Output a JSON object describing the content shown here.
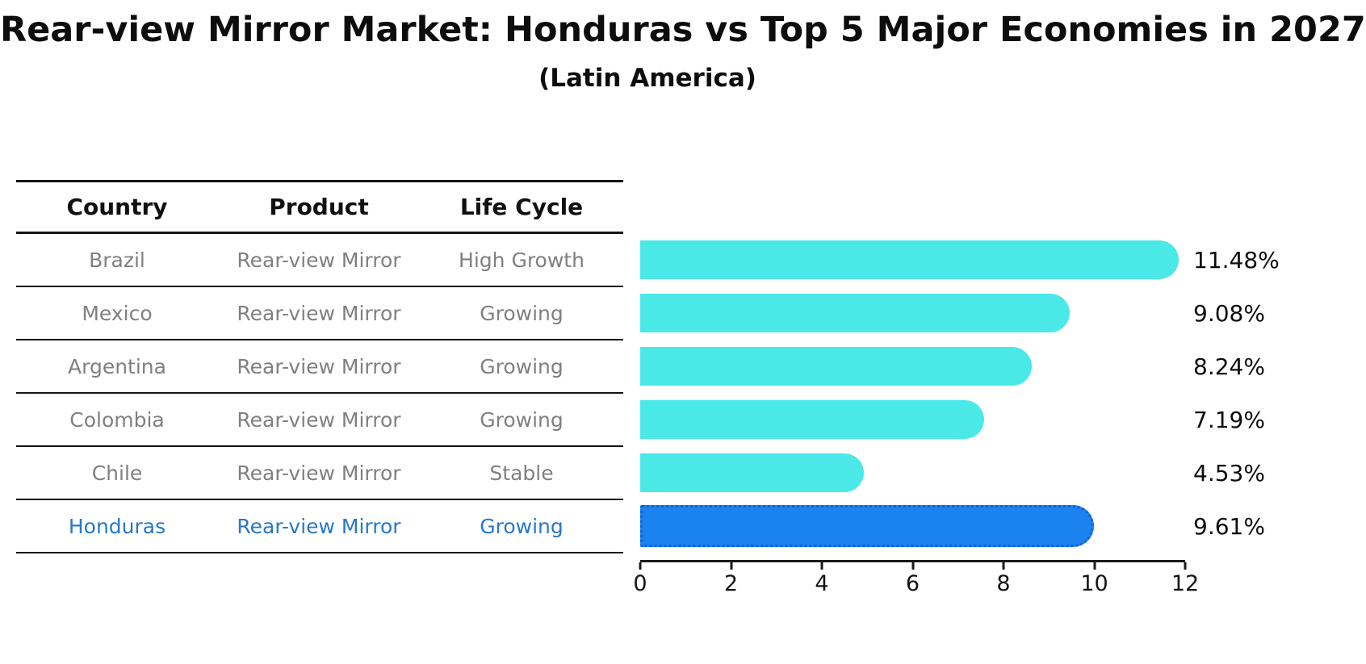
{
  "title": "Rear-view Mirror Market: Honduras vs Top 5 Major Economies in 2027",
  "subtitle": "(Latin America)",
  "table": {
    "headers": {
      "country": "Country",
      "product": "Product",
      "life_cycle": "Life Cycle"
    },
    "rows": [
      {
        "country": "Brazil",
        "product": "Rear-view Mirror",
        "life_cycle": "High Growth",
        "highlight": false
      },
      {
        "country": "Mexico",
        "product": "Rear-view Mirror",
        "life_cycle": "Growing",
        "highlight": false
      },
      {
        "country": "Argentina",
        "product": "Rear-view Mirror",
        "life_cycle": "Growing",
        "highlight": false
      },
      {
        "country": "Colombia",
        "product": "Rear-view Mirror",
        "life_cycle": "Growing",
        "highlight": false
      },
      {
        "country": "Chile",
        "product": "Rear-view Mirror",
        "life_cycle": "Stable",
        "highlight": false
      },
      {
        "country": "Honduras",
        "product": "Rear-view Mirror",
        "life_cycle": "Growing",
        "highlight": true
      }
    ]
  },
  "chart_data": {
    "type": "bar",
    "orientation": "horizontal",
    "title": "Rear-view Mirror Market: Honduras vs Top 5 Major Economies in 2027",
    "subtitle": "(Latin America)",
    "categories": [
      "Brazil",
      "Mexico",
      "Argentina",
      "Colombia",
      "Chile",
      "Honduras"
    ],
    "values": [
      11.48,
      9.08,
      8.24,
      7.19,
      4.53,
      9.61
    ],
    "value_labels": [
      "11.48%",
      "9.08%",
      "8.24%",
      "7.19%",
      "4.53%",
      "9.61%"
    ],
    "xlim": [
      0,
      12
    ],
    "xticks": [
      0,
      2,
      4,
      6,
      8,
      10,
      12
    ],
    "grid": false,
    "legend": "none",
    "highlight_category": "Honduras",
    "colors": {
      "bar": "#4be8e8",
      "highlight_bar": "#1b83f0",
      "highlight_bar_border": "#0e63d8",
      "highlight_text": "#2878c8",
      "table_text": "#808080",
      "header_text": "#111111",
      "axis": "#1a1a1a"
    }
  }
}
